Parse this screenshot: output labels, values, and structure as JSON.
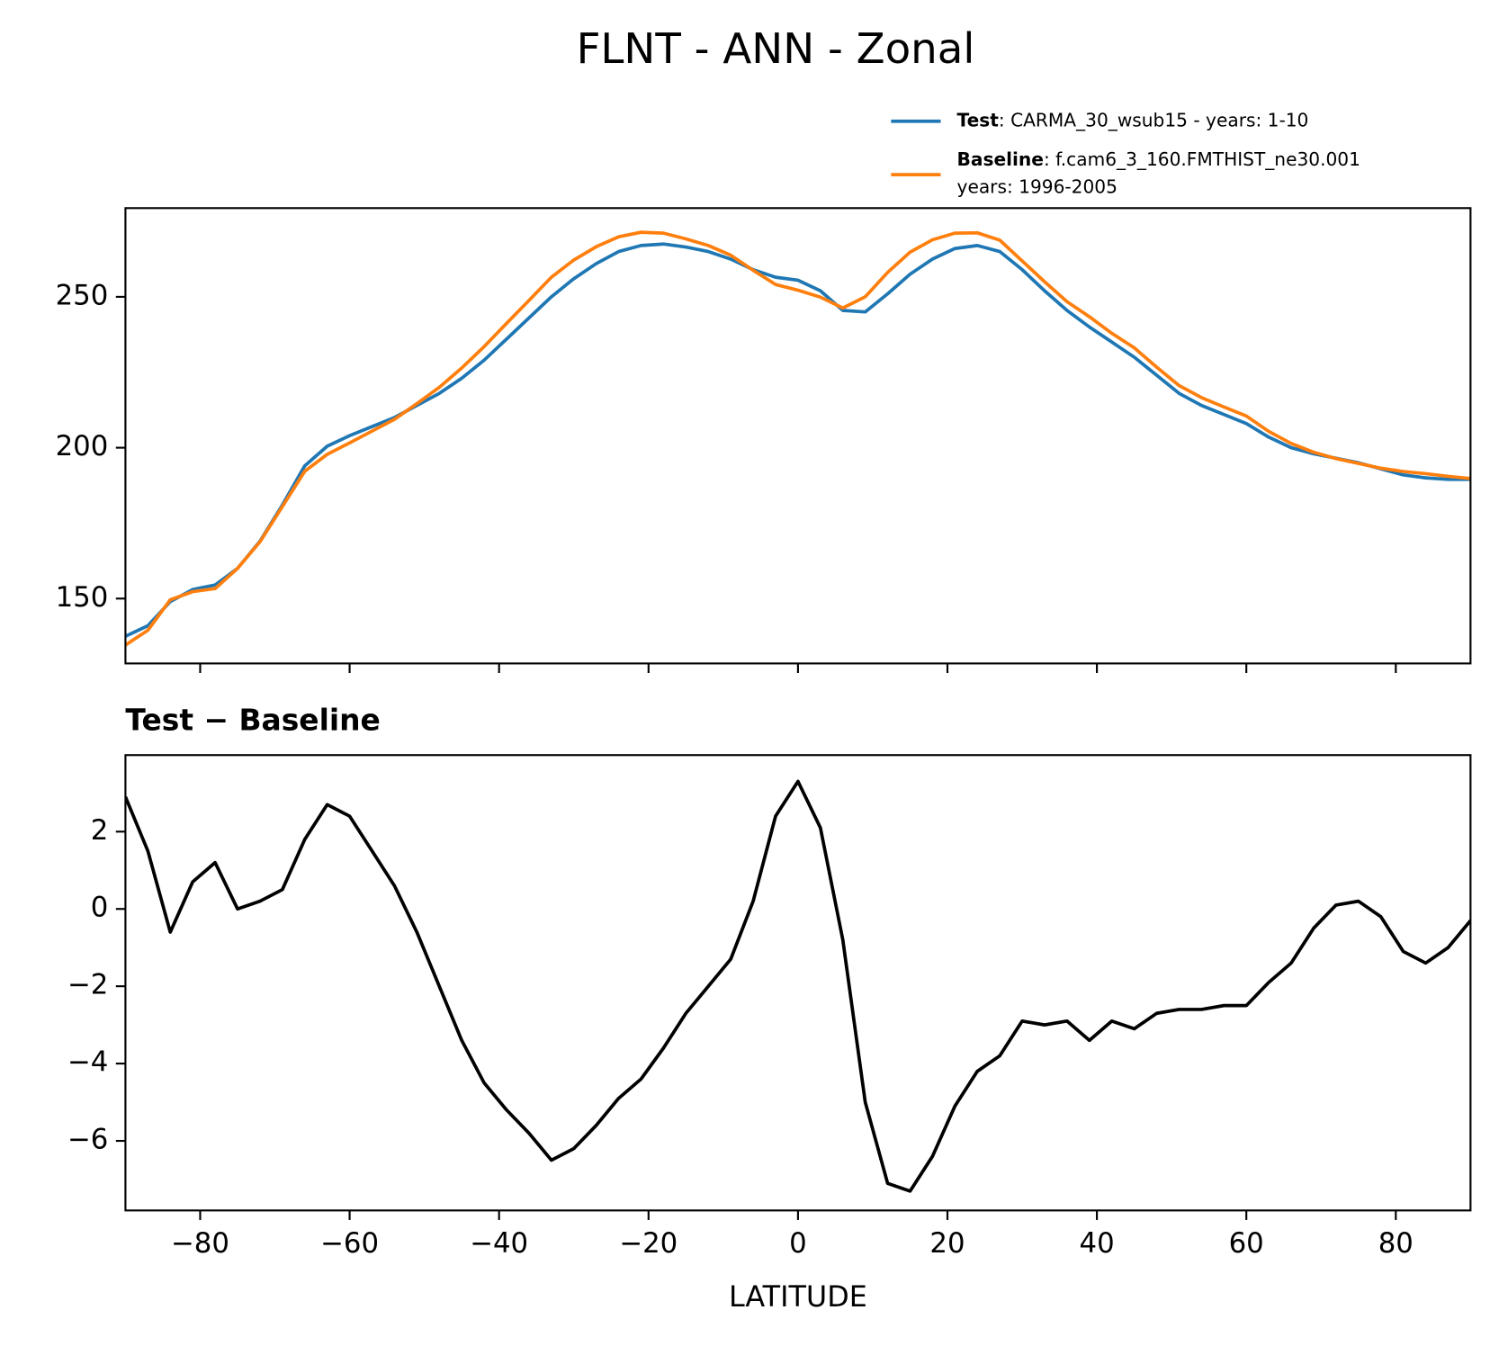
{
  "title": "FLNT - ANN - Zonal",
  "chart_data": [
    {
      "type": "line",
      "x": [
        -90,
        -87,
        -84,
        -81,
        -78,
        -75,
        -72,
        -69,
        -66,
        -63,
        -60,
        -57,
        -54,
        -51,
        -48,
        -45,
        -42,
        -39,
        -36,
        -33,
        -30,
        -27,
        -24,
        -21,
        -18,
        -15,
        -12,
        -9,
        -6,
        -3,
        0,
        3,
        6,
        9,
        12,
        15,
        18,
        21,
        24,
        27,
        30,
        33,
        36,
        39,
        42,
        45,
        48,
        51,
        54,
        57,
        60,
        63,
        66,
        69,
        72,
        75,
        78,
        81,
        84,
        87,
        90
      ],
      "series": [
        {
          "name": "Test",
          "description": ": CARMA_30_wsub15 - years: 1-10",
          "color": "#1f77b4",
          "values": [
            137.5,
            141,
            149,
            153,
            154.5,
            160,
            169,
            181,
            194,
            200.5,
            204,
            207,
            210,
            214,
            218,
            223,
            229,
            236,
            243,
            250,
            256,
            261,
            265,
            267,
            267.5,
            266.5,
            265,
            262.5,
            259,
            256.5,
            255.5,
            252,
            245.5,
            245,
            251,
            257.5,
            262.5,
            266,
            267,
            265,
            259,
            252,
            245.5,
            240,
            235,
            230,
            224,
            218,
            214,
            211,
            208,
            203.5,
            200,
            198,
            196.5,
            195,
            193,
            191,
            190,
            189.5,
            189.5
          ]
        },
        {
          "name": "Baseline",
          "description": [
            ": f.cam6_3_160.FMTHIST_ne30.001",
            "years: 1996-2005"
          ],
          "color": "#ff7f0e",
          "values": [
            134.6,
            139.5,
            149.6,
            152.3,
            153.3,
            160,
            168.8,
            180.5,
            192.2,
            197.8,
            201.6,
            205.5,
            209.4,
            214.6,
            220,
            226.4,
            233.5,
            241.2,
            248.8,
            256.5,
            262.2,
            266.6,
            269.9,
            271.4,
            271.1,
            269.2,
            267,
            263.8,
            258.8,
            254.1,
            252.2,
            249.9,
            246.3,
            250,
            258.1,
            264.8,
            268.9,
            271.1,
            271.2,
            268.8,
            261.9,
            255,
            248.4,
            243.4,
            237.9,
            233.1,
            226.7,
            220.6,
            216.6,
            213.5,
            210.5,
            205.4,
            201.4,
            198.5,
            196.4,
            194.8,
            193.2,
            192.1,
            191.4,
            190.5,
            189.8
          ]
        }
      ],
      "xlim": [
        -90,
        90
      ],
      "xticks": [
        -80,
        -60,
        -40,
        -20,
        0,
        20,
        40,
        60,
        80
      ],
      "ylim": [
        128.5,
        279.4
      ],
      "yticks": [
        150,
        200,
        250
      ]
    },
    {
      "type": "line",
      "title": "Test − Baseline",
      "xlabel": "LATITUDE",
      "color": "#000000",
      "x": [
        -90,
        -87,
        -84,
        -81,
        -78,
        -75,
        -72,
        -69,
        -66,
        -63,
        -60,
        -57,
        -54,
        -51,
        -48,
        -45,
        -42,
        -39,
        -36,
        -33,
        -30,
        -27,
        -24,
        -21,
        -18,
        -15,
        -12,
        -9,
        -6,
        -3,
        0,
        3,
        6,
        9,
        12,
        15,
        18,
        21,
        24,
        27,
        30,
        33,
        36,
        39,
        42,
        45,
        48,
        51,
        54,
        57,
        60,
        63,
        66,
        69,
        72,
        75,
        78,
        81,
        84,
        87,
        90
      ],
      "values": [
        2.9,
        1.5,
        -0.6,
        0.7,
        1.2,
        0,
        0.2,
        0.5,
        1.8,
        2.7,
        2.4,
        1.5,
        0.6,
        -0.6,
        -2,
        -3.4,
        -4.5,
        -5.2,
        -5.8,
        -6.5,
        -6.2,
        -5.6,
        -4.9,
        -4.4,
        -3.6,
        -2.7,
        -2,
        -1.3,
        0.2,
        2.4,
        3.3,
        2.1,
        -0.8,
        -5,
        -7.1,
        -7.3,
        -6.4,
        -5.1,
        -4.2,
        -3.8,
        -2.9,
        -3,
        -2.9,
        -3.4,
        -2.9,
        -3.1,
        -2.7,
        -2.6,
        -2.6,
        -2.5,
        -2.5,
        -1.9,
        -1.4,
        -0.5,
        0.1,
        0.2,
        -0.2,
        -1.1,
        -1.4,
        -1,
        -0.3
      ],
      "xlim": [
        -90,
        90
      ],
      "xticks": [
        {
          "value": -80,
          "label": "−80"
        },
        {
          "value": -60,
          "label": "−60"
        },
        {
          "value": -40,
          "label": "−40"
        },
        {
          "value": -20,
          "label": "−20"
        },
        0,
        20,
        40,
        60,
        80
      ],
      "ylim": [
        -7.8,
        3.98
      ],
      "yticks": [
        {
          "value": -6,
          "label": "−6"
        },
        {
          "value": -4,
          "label": "−4"
        },
        {
          "value": -2,
          "label": "−2"
        },
        0,
        2
      ]
    }
  ]
}
